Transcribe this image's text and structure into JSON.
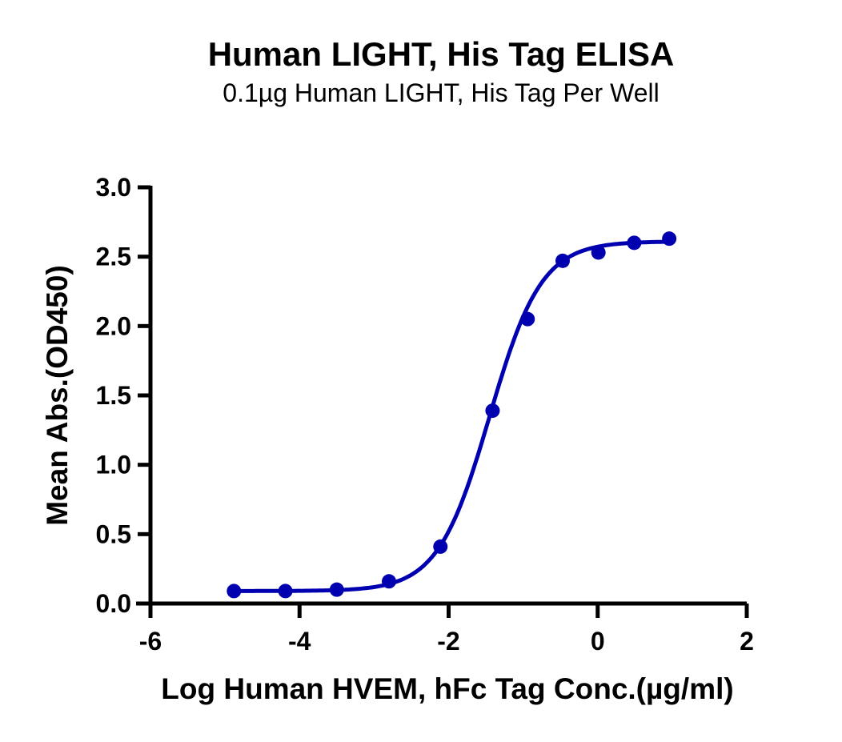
{
  "chart": {
    "title": "Human LIGHT, His Tag ELISA",
    "subtitle": "0.1µg Human LIGHT, His Tag Per Well",
    "xlabel": "Log Human HVEM, hFc Tag Conc.(µg/ml)",
    "ylabel": "Mean Abs.(OD450)",
    "series_color": "#0000b0"
  },
  "chart_data": {
    "type": "scatter",
    "title": "Human LIGHT, His Tag ELISA",
    "subtitle": "0.1µg Human LIGHT, His Tag Per Well",
    "xlabel": "Log Human HVEM, hFc Tag Conc.(µg/ml)",
    "ylabel": "Mean Abs.(OD450)",
    "xlim": [
      -6,
      2
    ],
    "ylim": [
      0,
      3.0
    ],
    "xticks": [
      "-6",
      "-4",
      "-2",
      "0",
      "2"
    ],
    "yticks": [
      "0.0",
      "0.5",
      "1.0",
      "1.5",
      "2.0",
      "2.5",
      "3.0"
    ],
    "grid": false,
    "legend": null,
    "fit": "4-parameter logistic (sigmoidal) curve",
    "series": [
      {
        "name": "Human HVEM, hFc Tag",
        "x": [
          -4.88,
          -4.19,
          -3.5,
          -2.8,
          -2.11,
          -1.41,
          -0.94,
          -0.47,
          0.01,
          0.49,
          0.96
        ],
        "y": [
          0.09,
          0.09,
          0.1,
          0.16,
          0.41,
          1.39,
          2.05,
          2.47,
          2.53,
          2.6,
          2.63
        ]
      }
    ]
  }
}
